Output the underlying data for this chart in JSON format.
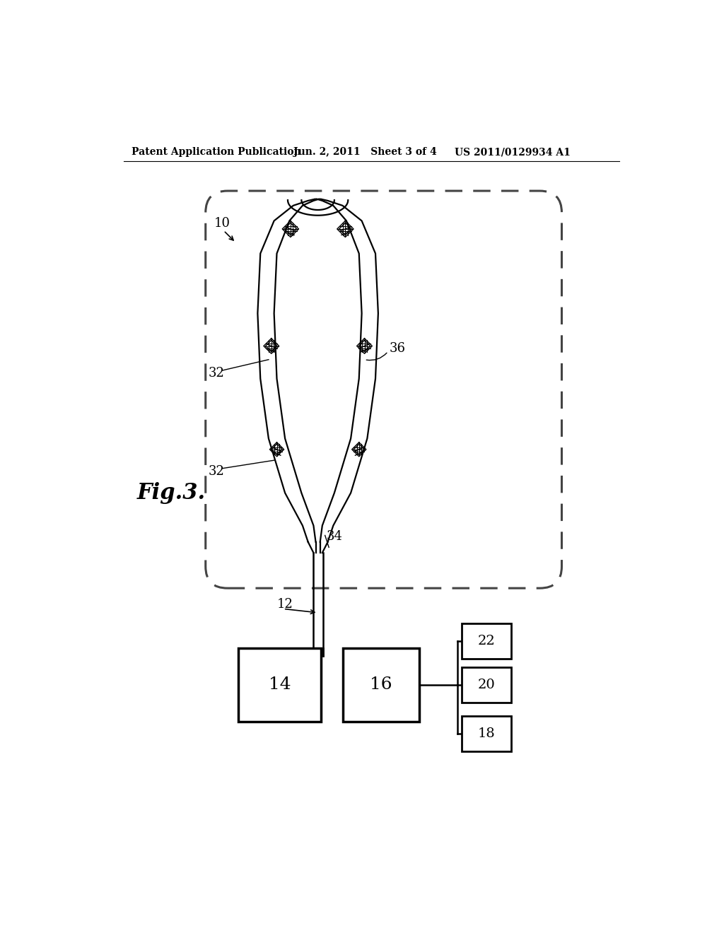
{
  "bg_color": "#ffffff",
  "line_color": "#000000",
  "dashed_color": "#444444",
  "header_left": "Patent Application Publication",
  "header_center": "Jun. 2, 2011   Sheet 3 of 4",
  "header_right": "US 2011/0129934 A1",
  "fig_label": "Fig.3.",
  "label_10": "10",
  "label_12": "12",
  "label_14": "14",
  "label_16": "16",
  "label_18": "18",
  "label_20": "20",
  "label_22": "22",
  "label_32a": "32",
  "label_32b": "32",
  "label_34": "34",
  "label_36": "36"
}
